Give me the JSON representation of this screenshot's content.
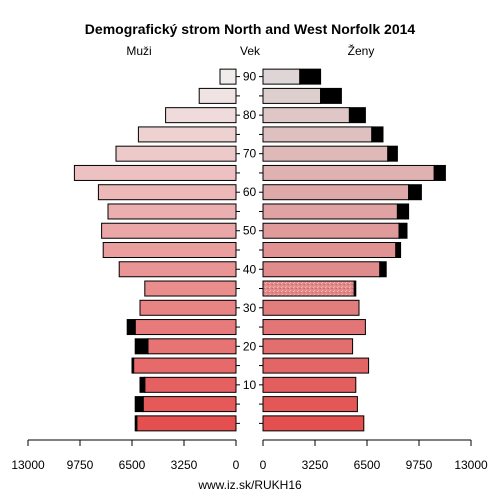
{
  "chart_data": {
    "type": "bar",
    "title": "Demografický strom North and West Norfolk 2014",
    "left_label": "Muži",
    "center_label": "Vek",
    "right_label": "Ženy",
    "source": "www.iz.sk/RUKH16",
    "xlim": [
      0,
      13000
    ],
    "x_ticks": [
      "13000",
      "9750",
      "6500",
      "3250",
      "0",
      "0",
      "3250",
      "6500",
      "9750",
      "13000"
    ],
    "age_ticks": [
      "10",
      "20",
      "30",
      "40",
      "50",
      "60",
      "70",
      "80",
      "90"
    ],
    "age_groups": [
      "0-4",
      "5-9",
      "10-14",
      "15-19",
      "20-24",
      "25-29",
      "30-34",
      "35-39",
      "40-44",
      "45-49",
      "50-54",
      "55-59",
      "60-64",
      "65-69",
      "70-74",
      "75-79",
      "80-84",
      "85-89",
      "90+"
    ],
    "series": [
      {
        "name": "Muži",
        "values": [
          6200,
          5800,
          5700,
          6400,
          5500,
          6300,
          6000,
          5700,
          7300,
          8300,
          8400,
          8000,
          8600,
          10100,
          7500,
          6100,
          4400,
          2300,
          1000
        ],
        "excess": [
          100,
          500,
          300,
          100,
          800,
          500,
          0,
          0,
          0,
          0,
          0,
          0,
          0,
          0,
          0,
          0,
          0,
          0,
          0
        ]
      },
      {
        "name": "Ženy",
        "values": [
          6300,
          5900,
          5800,
          6600,
          5600,
          6400,
          6000,
          5700,
          7300,
          8300,
          8500,
          8400,
          9100,
          10700,
          7800,
          6800,
          5400,
          3600,
          2300
        ],
        "excess": [
          0,
          0,
          0,
          0,
          0,
          0,
          0,
          100,
          400,
          300,
          500,
          700,
          800,
          700,
          600,
          700,
          1000,
          1300,
          1300
        ]
      }
    ]
  }
}
